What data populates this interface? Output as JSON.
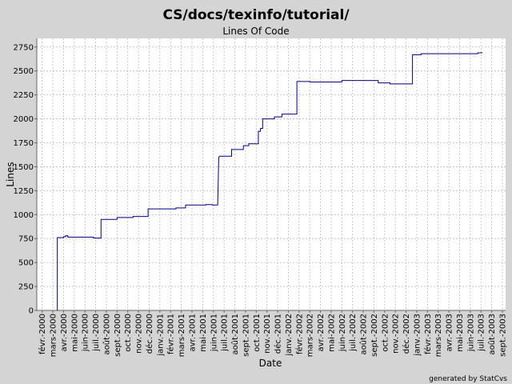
{
  "chart_data": {
    "type": "line",
    "title": "CS/docs/texinfo/tutorial/",
    "subtitle": "Lines Of Code",
    "x_label": "Date",
    "y_label": "Lines",
    "footer": "generated by StatCvs",
    "color": "#000080",
    "grid": true,
    "xlim": [
      -0.5,
      43.3
    ],
    "ylim": [
      0,
      2840
    ],
    "yticks": [
      0,
      250,
      500,
      750,
      1000,
      1250,
      1500,
      1750,
      2000,
      2250,
      2500,
      2750
    ],
    "xticks": [
      {
        "value": 0,
        "label": "févr.-2000"
      },
      {
        "value": 1,
        "label": "mars-2000"
      },
      {
        "value": 2,
        "label": "avr.-2000"
      },
      {
        "value": 3,
        "label": "mai-2000"
      },
      {
        "value": 4,
        "label": "juin-2000"
      },
      {
        "value": 5,
        "label": "juil.-2000"
      },
      {
        "value": 6,
        "label": "août-2000"
      },
      {
        "value": 7,
        "label": "sept.-2000"
      },
      {
        "value": 8,
        "label": "oct.-2000"
      },
      {
        "value": 9,
        "label": "nov.-2000"
      },
      {
        "value": 10,
        "label": "déc.-2000"
      },
      {
        "value": 11,
        "label": "janv.-2001"
      },
      {
        "value": 12,
        "label": "févr.-2001"
      },
      {
        "value": 13,
        "label": "mars-2001"
      },
      {
        "value": 14,
        "label": "avr.-2001"
      },
      {
        "value": 15,
        "label": "mai-2001"
      },
      {
        "value": 16,
        "label": "juin-2001"
      },
      {
        "value": 17,
        "label": "juil.-2001"
      },
      {
        "value": 18,
        "label": "août-2001"
      },
      {
        "value": 19,
        "label": "sept.-2001"
      },
      {
        "value": 20,
        "label": "oct.-2001"
      },
      {
        "value": 21,
        "label": "nov.-2001"
      },
      {
        "value": 22,
        "label": "déc.-2001"
      },
      {
        "value": 23,
        "label": "janv.-2002"
      },
      {
        "value": 24,
        "label": "févr.-2002"
      },
      {
        "value": 25,
        "label": "mars-2002"
      },
      {
        "value": 26,
        "label": "avr.-2002"
      },
      {
        "value": 27,
        "label": "mai-2002"
      },
      {
        "value": 28,
        "label": "juin-2002"
      },
      {
        "value": 29,
        "label": "juil.-2002"
      },
      {
        "value": 30,
        "label": "août-2002"
      },
      {
        "value": 31,
        "label": "sept.-2002"
      },
      {
        "value": 32,
        "label": "oct.-2002"
      },
      {
        "value": 33,
        "label": "nov.-2002"
      },
      {
        "value": 34,
        "label": "déc.-2002"
      },
      {
        "value": 35,
        "label": "janv.-2003"
      },
      {
        "value": 36,
        "label": "févr.-2003"
      },
      {
        "value": 37,
        "label": "mars-2003"
      },
      {
        "value": 38,
        "label": "avr.-2003"
      },
      {
        "value": 39,
        "label": "mai-2003"
      },
      {
        "value": 40,
        "label": "juin-2003"
      },
      {
        "value": 41,
        "label": "juil.-2003"
      },
      {
        "value": 42,
        "label": "août-2003"
      },
      {
        "value": 43,
        "label": "sept.-2003"
      }
    ],
    "x": [
      1.42,
      1.42,
      2.0,
      2.0,
      2.2,
      2.2,
      2.4,
      2.4,
      4.8,
      4.8,
      5.5,
      5.5,
      7.0,
      7.0,
      8.5,
      8.5,
      9.9,
      9.9,
      12.5,
      12.5,
      13.4,
      13.4,
      15.3,
      15.3,
      15.9,
      15.9,
      16.4,
      16.5,
      16.6,
      17.7,
      17.7,
      18.8,
      18.8,
      19.3,
      19.3,
      20.2,
      20.2,
      20.4,
      20.4,
      20.6,
      20.6,
      21.7,
      21.7,
      22.4,
      22.4,
      23.8,
      23.8,
      25.0,
      25.0,
      28.0,
      28.0,
      31.4,
      31.4,
      32.5,
      32.5,
      34.6,
      34.6,
      35.4,
      35.4,
      40.7,
      40.7,
      41.1,
      41.1
    ],
    "values": [
      0,
      760,
      760,
      770,
      770,
      780,
      780,
      765,
      765,
      755,
      755,
      950,
      950,
      970,
      970,
      980,
      980,
      1060,
      1060,
      1070,
      1070,
      1100,
      1100,
      1105,
      1105,
      1100,
      1100,
      1600,
      1610,
      1610,
      1680,
      1680,
      1720,
      1720,
      1740,
      1740,
      1870,
      1870,
      1900,
      1900,
      2000,
      2000,
      2020,
      2020,
      2050,
      2050,
      2390,
      2390,
      2385,
      2385,
      2400,
      2400,
      2375,
      2375,
      2365,
      2365,
      2670,
      2670,
      2680,
      2680,
      2690,
      2690,
      2695
    ]
  }
}
